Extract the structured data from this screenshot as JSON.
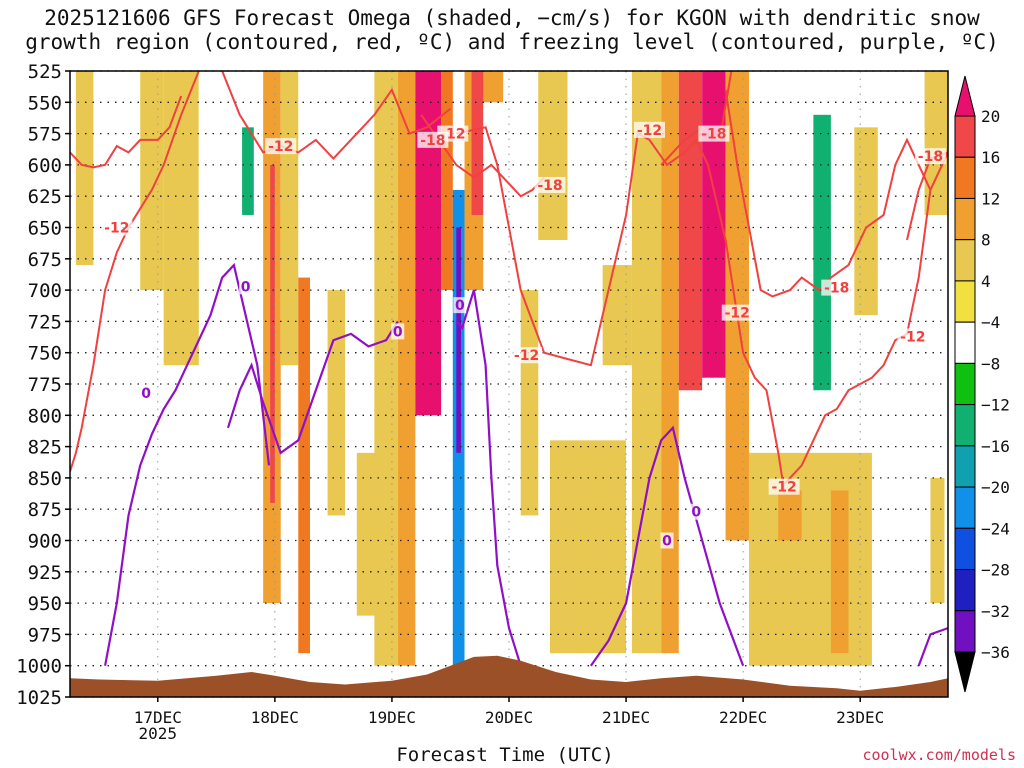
{
  "title": {
    "line1": "2025121606 GFS Forecast Omega (shaded, −cm/s) for KGON with dendritic snow",
    "line2": "growth region (contoured, red, ºC) and freezing level (contoured, purple, ºC)"
  },
  "credit": "coolwx.com/models",
  "chart_data": {
    "type": "heatmap",
    "title": "2025121606 GFS Forecast Omega (shaded, −cm/s) for KGON with dendritic snow growth region (contoured, red, ºC) and freezing level (contoured, purple, ºC)",
    "xlabel": "Forecast Time (UTC)",
    "ylabel": "",
    "x_ticks": [
      "17DEC",
      "18DEC",
      "19DEC",
      "20DEC",
      "21DEC",
      "22DEC",
      "23DEC"
    ],
    "x_year_label": "2025",
    "xlim_days": [
      16.25,
      23.75
    ],
    "y_ticks": [
      525,
      550,
      575,
      600,
      625,
      650,
      675,
      700,
      725,
      750,
      775,
      800,
      825,
      850,
      875,
      900,
      925,
      950,
      975,
      1000,
      1025
    ],
    "ylim": [
      1025,
      525
    ],
    "grid": true,
    "colorbar": {
      "levels": [
        20,
        16,
        12,
        8,
        4,
        -4,
        -8,
        -12,
        -16,
        -20,
        -24,
        -28,
        -32,
        -36
      ],
      "colors": [
        "#e8106e",
        "#f04848",
        "#f07820",
        "#f0a030",
        "#e8c850",
        "#f0e040",
        "#ffffff",
        "#10c010",
        "#10b070",
        "#10a0b0",
        "#1090e8",
        "#1050e0",
        "#2020c0",
        "#7010c0",
        "#a010c0",
        "#b0b0b0",
        "#000000"
      ]
    },
    "shading": [
      {
        "x": [
          16.3,
          16.45
        ],
        "p": [
          525,
          680
        ],
        "omega": 5
      },
      {
        "x": [
          16.55,
          16.62
        ],
        "p": [
          590,
          640
        ],
        "omega": -6
      },
      {
        "x": [
          16.85,
          17.05
        ],
        "p": [
          525,
          700
        ],
        "omega": 6
      },
      {
        "x": [
          17.05,
          17.35
        ],
        "p": [
          525,
          760
        ],
        "omega": 5
      },
      {
        "x": [
          17.35,
          17.5
        ],
        "p": [
          525,
          650
        ],
        "omega": -6
      },
      {
        "x": [
          17.6,
          17.9
        ],
        "p": [
          525,
          770
        ],
        "omega": -8
      },
      {
        "x": [
          17.72,
          17.82
        ],
        "p": [
          570,
          640
        ],
        "omega": -14
      },
      {
        "x": [
          17.9,
          18.05
        ],
        "p": [
          525,
          950
        ],
        "omega": 10
      },
      {
        "x": [
          17.96,
          18.0
        ],
        "p": [
          600,
          870
        ],
        "omega": 18
      },
      {
        "x": [
          18.05,
          18.2
        ],
        "p": [
          525,
          760
        ],
        "omega": 5
      },
      {
        "x": [
          18.2,
          18.3
        ],
        "p": [
          690,
          990
        ],
        "omega": 12
      },
      {
        "x": [
          18.3,
          18.45
        ],
        "p": [
          525,
          740
        ],
        "omega": -6
      },
      {
        "x": [
          18.45,
          18.6
        ],
        "p": [
          700,
          880
        ],
        "omega": 5
      },
      {
        "x": [
          18.7,
          18.9
        ],
        "p": [
          830,
          960
        ],
        "omega": 5
      },
      {
        "x": [
          18.85,
          19.05
        ],
        "p": [
          525,
          1000
        ],
        "omega": 6
      },
      {
        "x": [
          19.05,
          19.2
        ],
        "p": [
          525,
          1000
        ],
        "omega": 10
      },
      {
        "x": [
          19.2,
          19.42
        ],
        "p": [
          525,
          800
        ],
        "omega": 20
      },
      {
        "x": [
          19.42,
          19.52
        ],
        "p": [
          525,
          700
        ],
        "omega": 12
      },
      {
        "x": [
          19.3,
          19.55
        ],
        "p": [
          820,
          1000
        ],
        "omega": -8
      },
      {
        "x": [
          19.52,
          19.62
        ],
        "p": [
          620,
          1000
        ],
        "omega": -24
      },
      {
        "x": [
          19.55,
          19.59
        ],
        "p": [
          650,
          830
        ],
        "omega": -36
      },
      {
        "x": [
          19.62,
          19.78
        ],
        "p": [
          700,
          990
        ],
        "omega": -8
      },
      {
        "x": [
          19.62,
          19.95
        ],
        "p": [
          525,
          700
        ],
        "omega": 10
      },
      {
        "x": [
          19.68,
          19.78
        ],
        "p": [
          525,
          640
        ],
        "omega": 18
      },
      {
        "x": [
          19.78,
          20.05
        ],
        "p": [
          550,
          730
        ],
        "omega": -8
      },
      {
        "x": [
          20.1,
          20.25
        ],
        "p": [
          700,
          880
        ],
        "omega": 5
      },
      {
        "x": [
          20.25,
          20.55
        ],
        "p": [
          525,
          660
        ],
        "omega": 6
      },
      {
        "x": [
          20.5,
          20.65
        ],
        "p": [
          525,
          700
        ],
        "omega": -6
      },
      {
        "x": [
          20.35,
          21.0
        ],
        "p": [
          820,
          990
        ],
        "omega": 5
      },
      {
        "x": [
          20.8,
          21.05
        ],
        "p": [
          680,
          760
        ],
        "omega": 5
      },
      {
        "x": [
          21.05,
          21.3
        ],
        "p": [
          525,
          990
        ],
        "omega": 6
      },
      {
        "x": [
          21.3,
          21.45
        ],
        "p": [
          525,
          990
        ],
        "omega": 10
      },
      {
        "x": [
          21.45,
          21.65
        ],
        "p": [
          525,
          780
        ],
        "omega": 17
      },
      {
        "x": [
          21.65,
          21.85
        ],
        "p": [
          525,
          770
        ],
        "omega": 20
      },
      {
        "x": [
          21.85,
          22.05
        ],
        "p": [
          525,
          900
        ],
        "omega": 8
      },
      {
        "x": [
          22.15,
          22.4
        ],
        "p": [
          525,
          700
        ],
        "omega": -6
      },
      {
        "x": [
          22.4,
          22.65
        ],
        "p": [
          525,
          690
        ],
        "omega": -8
      },
      {
        "x": [
          22.6,
          22.75
        ],
        "p": [
          560,
          780
        ],
        "omega": -14
      },
      {
        "x": [
          22.75,
          22.95
        ],
        "p": [
          525,
          650
        ],
        "omega": -6
      },
      {
        "x": [
          22.95,
          23.15
        ],
        "p": [
          570,
          720
        ],
        "omega": 5
      },
      {
        "x": [
          22.05,
          23.1
        ],
        "p": [
          830,
          1000
        ],
        "omega": 5
      },
      {
        "x": [
          22.3,
          22.5
        ],
        "p": [
          860,
          900
        ],
        "omega": 10
      },
      {
        "x": [
          22.75,
          22.9
        ],
        "p": [
          860,
          990
        ],
        "omega": 9
      },
      {
        "x": [
          23.3,
          23.55
        ],
        "p": [
          525,
          760
        ],
        "omega": -7
      },
      {
        "x": [
          23.55,
          23.75
        ],
        "p": [
          525,
          640
        ],
        "omega": 5
      },
      {
        "x": [
          23.6,
          23.72
        ],
        "p": [
          850,
          950
        ],
        "omega": 5
      },
      {
        "x": [
          23.15,
          23.3
        ],
        "p": [
          860,
          910
        ],
        "omega": -6
      }
    ],
    "red_contour_-12": {
      "label": "-12",
      "segments": [
        {
          "x": [
            16.25,
            16.35,
            16.45,
            16.55,
            16.65,
            16.75,
            16.85,
            17.0,
            17.1,
            17.2
          ],
          "p": [
            590,
            600,
            602,
            600,
            585,
            590,
            580,
            580,
            570,
            545
          ]
        },
        {
          "x": [
            16.25,
            16.3,
            16.35,
            16.45,
            16.55,
            16.65,
            16.75,
            16.85,
            16.95,
            17.05,
            17.2,
            17.35
          ],
          "p": [
            845,
            830,
            810,
            760,
            700,
            670,
            650,
            635,
            620,
            600,
            560,
            525
          ]
        },
        {
          "x": [
            17.55,
            17.7,
            17.9,
            18.05,
            18.2,
            18.35,
            18.5,
            18.7,
            18.85,
            19.0,
            19.15,
            19.3,
            19.5
          ],
          "p": [
            525,
            560,
            590,
            585,
            590,
            580,
            595,
            575,
            560,
            540,
            575,
            570,
            555
          ]
        },
        {
          "x": [
            19.55,
            19.8,
            19.9,
            20.0,
            20.1,
            20.3,
            20.5,
            20.7,
            20.85,
            21.0,
            21.1,
            21.2,
            21.35,
            21.5,
            21.6,
            21.7,
            21.85,
            22.0,
            22.1,
            22.2,
            22.3,
            22.35
          ],
          "p": [
            575,
            570,
            600,
            650,
            700,
            750,
            755,
            760,
            700,
            640,
            575,
            580,
            600,
            590,
            580,
            600,
            660,
            750,
            770,
            780,
            830,
            860
          ]
        },
        {
          "x": [
            22.35,
            22.5,
            22.6,
            22.7,
            22.8,
            22.9,
            23.0,
            23.1,
            23.2,
            23.3,
            23.4,
            23.5,
            23.6,
            23.75
          ],
          "p": [
            855,
            840,
            820,
            800,
            795,
            780,
            775,
            770,
            760,
            740,
            735,
            690,
            620,
            590
          ]
        },
        {
          "x": [
            21.85,
            21.95,
            22.05,
            22.15,
            22.25,
            22.4,
            22.5,
            22.65,
            22.75,
            22.9,
            23.05,
            23.2,
            23.3,
            23.4,
            23.5,
            23.6
          ],
          "p": [
            540,
            600,
            650,
            700,
            705,
            700,
            690,
            700,
            690,
            680,
            650,
            640,
            600,
            580,
            600,
            620
          ]
        }
      ]
    },
    "red_contour_-18": {
      "label": "-18",
      "segments": [
        {
          "x": [
            19.25,
            19.4,
            19.55,
            19.7,
            19.85,
            20.0,
            20.1,
            20.2,
            20.3
          ],
          "p": [
            560,
            580,
            600,
            610,
            600,
            615,
            625,
            620,
            610
          ]
        },
        {
          "x": [
            21.3,
            21.5,
            21.65,
            21.8,
            21.9
          ],
          "p": [
            600,
            580,
            570,
            580,
            525
          ]
        },
        {
          "x": [
            23.4,
            23.5,
            23.6,
            23.75
          ],
          "p": [
            660,
            620,
            595,
            590
          ]
        }
      ]
    },
    "purple_contour_0": {
      "label": "0",
      "segments": [
        {
          "x": [
            16.55,
            16.65,
            16.75,
            16.85,
            16.95,
            17.05,
            17.15,
            17.25,
            17.35,
            17.45,
            17.55,
            17.65,
            17.75,
            17.85,
            17.95
          ],
          "p": [
            1000,
            950,
            880,
            840,
            815,
            795,
            780,
            760,
            740,
            720,
            690,
            680,
            720,
            760,
            840
          ]
        },
        {
          "x": [
            17.6,
            17.7,
            17.8,
            17.9,
            18.05,
            18.2,
            18.35,
            18.5,
            18.65,
            18.8,
            18.95,
            19.05
          ],
          "p": [
            810,
            780,
            760,
            790,
            830,
            820,
            780,
            740,
            735,
            745,
            740,
            725
          ]
        },
        {
          "x": [
            19.55,
            19.6,
            19.7,
            19.8,
            19.85,
            19.9,
            20.0,
            20.1
          ],
          "p": [
            725,
            730,
            700,
            760,
            850,
            920,
            970,
            1000
          ]
        },
        {
          "x": [
            20.7,
            20.85,
            21.0,
            21.1,
            21.2,
            21.3,
            21.4,
            21.5,
            21.65,
            21.8,
            22.0
          ],
          "p": [
            1000,
            980,
            950,
            900,
            850,
            820,
            810,
            850,
            900,
            950,
            1000
          ]
        },
        {
          "x": [
            23.5,
            23.6,
            23.75
          ],
          "p": [
            1000,
            975,
            970
          ]
        }
      ]
    },
    "terrain": {
      "x": [
        16.25,
        16.5,
        17.0,
        17.5,
        17.8,
        18.0,
        18.3,
        18.6,
        19.0,
        19.3,
        19.5,
        19.7,
        19.9,
        20.1,
        20.4,
        20.7,
        21.0,
        21.3,
        21.6,
        22.0,
        22.4,
        22.8,
        23.0,
        23.3,
        23.6,
        23.75
      ],
      "p": [
        1010,
        1011,
        1012,
        1008,
        1005,
        1008,
        1013,
        1015,
        1012,
        1007,
        1000,
        993,
        992,
        996,
        1005,
        1011,
        1013,
        1010,
        1008,
        1011,
        1016,
        1018,
        1020,
        1017,
        1013,
        1010
      ]
    }
  }
}
